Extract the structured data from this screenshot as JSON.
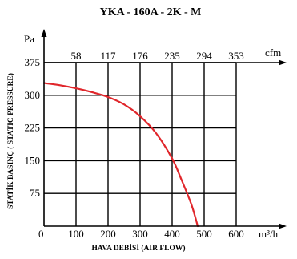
{
  "chart_data": {
    "type": "line",
    "title": "YKA -  160A - 2K - M",
    "xlabel": "HAVA DEBİSİ (AIR FLOW)",
    "ylabel": "STATİK BASINÇ ( STATIC PRESSURE)",
    "x_unit": "m³/h",
    "y_unit": "Pa",
    "top_axis_unit": "cfm",
    "x_ticks": [
      "0",
      "100",
      "200",
      "300",
      "400",
      "500",
      "600"
    ],
    "top_ticks": [
      "58",
      "117",
      "176",
      "235",
      "294",
      "353"
    ],
    "y_ticks": [
      "75",
      "150",
      "225",
      "300",
      "375"
    ],
    "xlim": [
      0,
      700
    ],
    "ylim": [
      0,
      375
    ],
    "grid": true,
    "line_color": "#e0262b",
    "series": [
      {
        "x": [
          0,
          50,
          100,
          150,
          200,
          250,
          300,
          350,
          400,
          430,
          460,
          480
        ],
        "y": [
          328,
          323,
          316,
          307,
          296,
          279,
          252,
          213,
          155,
          105,
          50,
          0
        ]
      }
    ]
  }
}
